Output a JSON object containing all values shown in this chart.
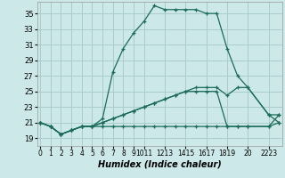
{
  "xlabel": "Humidex (Indice chaleur)",
  "bg_color": "#cce8e8",
  "grid_color": "#aacccc",
  "line_color": "#1a6b5a",
  "yticks": [
    19,
    21,
    23,
    25,
    27,
    29,
    31,
    33,
    35
  ],
  "ylim": [
    18.0,
    36.5
  ],
  "xlim": [
    -0.3,
    23.3
  ],
  "x_tick_positions": [
    0,
    1,
    2,
    3,
    4,
    5,
    6,
    7,
    8,
    9,
    10,
    12,
    14,
    16,
    18,
    20,
    22
  ],
  "x_tick_labels": [
    "0",
    "1",
    "2",
    "3",
    "4",
    "5",
    "6",
    "7",
    "8",
    "9",
    "1011",
    "1213",
    "1415",
    "1617",
    "1819",
    "20",
    "2223"
  ],
  "series": [
    {
      "x": [
        0,
        1,
        2,
        3,
        4,
        5,
        6,
        7,
        8,
        9,
        10,
        11,
        12,
        13,
        14,
        15,
        16,
        17,
        18,
        19,
        20,
        22,
        23
      ],
      "y": [
        21.0,
        20.5,
        19.5,
        20.0,
        20.5,
        20.5,
        21.5,
        27.5,
        30.5,
        32.5,
        34.0,
        36.0,
        35.5,
        35.5,
        35.5,
        35.5,
        35.0,
        35.0,
        30.5,
        27.0,
        25.5,
        22.0,
        21.0
      ]
    },
    {
      "x": [
        0,
        1,
        2,
        3,
        4,
        5,
        6,
        7,
        8,
        9,
        10,
        11,
        12,
        13,
        14,
        15,
        16,
        17,
        18,
        19,
        20,
        22,
        23
      ],
      "y": [
        21.0,
        20.5,
        19.5,
        20.0,
        20.5,
        20.5,
        21.0,
        21.5,
        22.0,
        22.5,
        23.0,
        23.5,
        24.0,
        24.5,
        25.0,
        25.5,
        25.5,
        25.5,
        24.5,
        25.5,
        25.5,
        22.0,
        22.0
      ]
    },
    {
      "x": [
        0,
        1,
        2,
        3,
        4,
        5,
        6,
        7,
        8,
        9,
        10,
        11,
        12,
        13,
        14,
        15,
        16,
        17,
        18,
        19,
        20,
        22,
        23
      ],
      "y": [
        21.0,
        20.5,
        19.5,
        20.0,
        20.5,
        20.5,
        21.0,
        21.5,
        22.0,
        22.5,
        23.0,
        23.5,
        24.0,
        24.5,
        25.0,
        25.0,
        25.0,
        25.0,
        20.5,
        20.5,
        20.5,
        20.5,
        22.0
      ]
    },
    {
      "x": [
        0,
        1,
        2,
        3,
        4,
        5,
        6,
        7,
        8,
        9,
        10,
        11,
        12,
        13,
        14,
        15,
        16,
        17,
        18,
        19,
        20,
        22,
        23
      ],
      "y": [
        21.0,
        20.5,
        19.5,
        20.0,
        20.5,
        20.5,
        20.5,
        20.5,
        20.5,
        20.5,
        20.5,
        20.5,
        20.5,
        20.5,
        20.5,
        20.5,
        20.5,
        20.5,
        20.5,
        20.5,
        20.5,
        20.5,
        21.0
      ]
    }
  ]
}
